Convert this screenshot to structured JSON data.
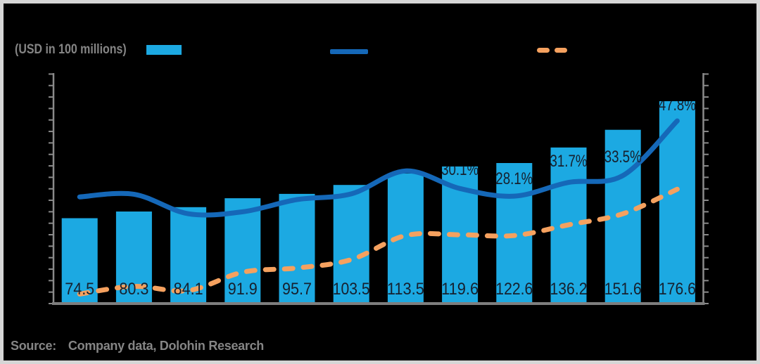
{
  "legend": {
    "unit_label": "(USD in 100 millions)",
    "items": [
      {
        "name": "revenue-bars",
        "swatch": "bar",
        "color": "#1CA9E2"
      },
      {
        "name": "growth-line",
        "swatch": "line",
        "color": "#1568B8"
      },
      {
        "name": "margin-line",
        "swatch": "dashed-line",
        "color": "#F5A15F"
      }
    ]
  },
  "source": {
    "prefix": "Source:",
    "text": "Company data, Dolohin Research"
  },
  "colors": {
    "background": "#000000",
    "frame_border": "#D6D6D6",
    "axis": "#8A8A8A",
    "baseline": "#7E7E7E",
    "data_label": "#16202E",
    "muted_text": "#858585"
  },
  "chart_data": {
    "type": "combo (bar + 2 lines)",
    "title": "",
    "bar_unit": "USD in 100 millions",
    "n_points": 12,
    "x_tick_labels_visible": false,
    "bars": {
      "type": "bar",
      "color": "#1CA9E2",
      "values": [
        74.5,
        80.3,
        84.1,
        91.9,
        95.7,
        103.5,
        113.5,
        119.6,
        122.6,
        136.2,
        151.6,
        176.6
      ],
      "labels": [
        "74.5",
        "80.3",
        "84.1",
        "91.9",
        "95.7",
        "103.5",
        "113.5",
        "119.6",
        "122.6",
        "136.2",
        "151.6",
        "176.6"
      ]
    },
    "line_solid": {
      "type": "line",
      "style": "solid",
      "color": "#1568B8",
      "values_pct": [
        27.9,
        28.6,
        23.5,
        24.0,
        27.2,
        28.7,
        34.7,
        30.1,
        28.1,
        31.7,
        33.5,
        47.8
      ],
      "labels": [
        {
          "index": 7,
          "text": "30.1%"
        },
        {
          "index": 8,
          "text": "28.1%"
        },
        {
          "index": 9,
          "text": "31.7%"
        },
        {
          "index": 10,
          "text": "33.5%"
        },
        {
          "index": 11,
          "text": "47.8%"
        }
      ]
    },
    "line_dashed": {
      "type": "line",
      "style": "dashed",
      "color": "#F5A15F",
      "values_pct": [
        2.5,
        4.5,
        3.4,
        8.2,
        9.3,
        11.5,
        17.8,
        18.0,
        17.8,
        20.6,
        23.5,
        29.9
      ],
      "labels": []
    },
    "axes": {
      "left": {
        "min": 0,
        "max": 200,
        "tick_step": 10,
        "tick_labels_visible": false
      },
      "right": {
        "min": 0,
        "max": 60,
        "tick_count": 21,
        "tick_labels_visible": false
      },
      "grid": false,
      "legend_position": "top"
    }
  }
}
